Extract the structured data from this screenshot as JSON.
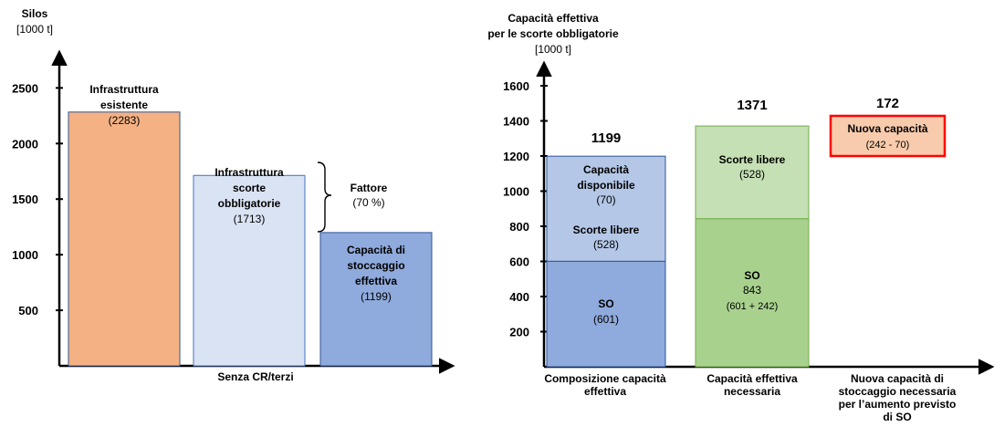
{
  "chart_data": [
    {
      "type": "bar",
      "ylabel": "Silos",
      "yunit": "[1000 t]",
      "xlabel": "Senza CR/terzi",
      "ylim": [
        0,
        2700
      ],
      "yticks": [
        "500",
        "1000",
        "1500",
        "2000",
        "2500"
      ],
      "ytick_values": [
        500,
        1000,
        1500,
        2000,
        2500
      ],
      "categories": [
        "Infrastruttura esistente",
        "Infrastruttura scorte obbligatorie",
        "Capacità di stoccaggio effettiva"
      ],
      "values": [
        2283,
        1713,
        1199
      ],
      "colors": [
        "#f4b183",
        "#dae3f3",
        "#8faadc"
      ],
      "bar_labels": [
        {
          "lines": [
            "Infrastruttura",
            "esistente"
          ],
          "value": "(2283)"
        },
        {
          "lines": [
            "Infrastruttura",
            "scorte",
            "obbligatorie"
          ],
          "value": "(1713)"
        },
        {
          "lines": [
            "Capacità di",
            "stoccaggio",
            "effettiva"
          ],
          "value": "(1199)"
        }
      ],
      "annotation": {
        "label": "Fattore",
        "value": "(70 %)"
      }
    },
    {
      "type": "bar",
      "stacked": true,
      "ylabel_lines": [
        "Capacità effettiva",
        "per le scorte obbligatorie"
      ],
      "yunit": "[1000 t]",
      "ylim": [
        0,
        1700
      ],
      "yticks": [
        "200",
        "400",
        "600",
        "800",
        "1000",
        "1200",
        "1400",
        "1600"
      ],
      "ytick_values": [
        200,
        400,
        600,
        800,
        1000,
        1200,
        1400,
        1600
      ],
      "categories": [
        [
          "Composizione  capacità",
          "effettiva"
        ],
        [
          "Capacità effettiva",
          "necessaria"
        ],
        [
          "Nuova capacità di",
          "stoccaggio necessaria",
          "per l’aumento previsto",
          "di SO"
        ]
      ],
      "totals": [
        "1199",
        "1371",
        "172"
      ],
      "bars": [
        {
          "segments": [
            {
              "lines": [
                "SO"
              ],
              "value": "(601)",
              "amount": 601,
              "color": "#8faadc"
            },
            {
              "lines": [
                "Scorte libere"
              ],
              "value": "(528)",
              "amount": 528,
              "color": "#b4c7e7"
            },
            {
              "lines": [
                "Capacità",
                "disponibile"
              ],
              "value": "(70)",
              "amount": 70,
              "color": "#b4c7e7"
            }
          ]
        },
        {
          "segments": [
            {
              "lines": [
                "SO"
              ],
              "value": "843",
              "value2": "(601 + 242)",
              "amount": 843,
              "color": "#a9d18e"
            },
            {
              "lines": [
                "Scorte libere"
              ],
              "value": "(528)",
              "amount": 528,
              "color": "#c5e0b4"
            }
          ]
        },
        {
          "segments": [
            {
              "lines": [
                "Nuova capacità"
              ],
              "value": "(242 - 70)",
              "amount": 172,
              "color": "#f8cbad",
              "border": "#ff0000"
            }
          ]
        }
      ]
    }
  ]
}
